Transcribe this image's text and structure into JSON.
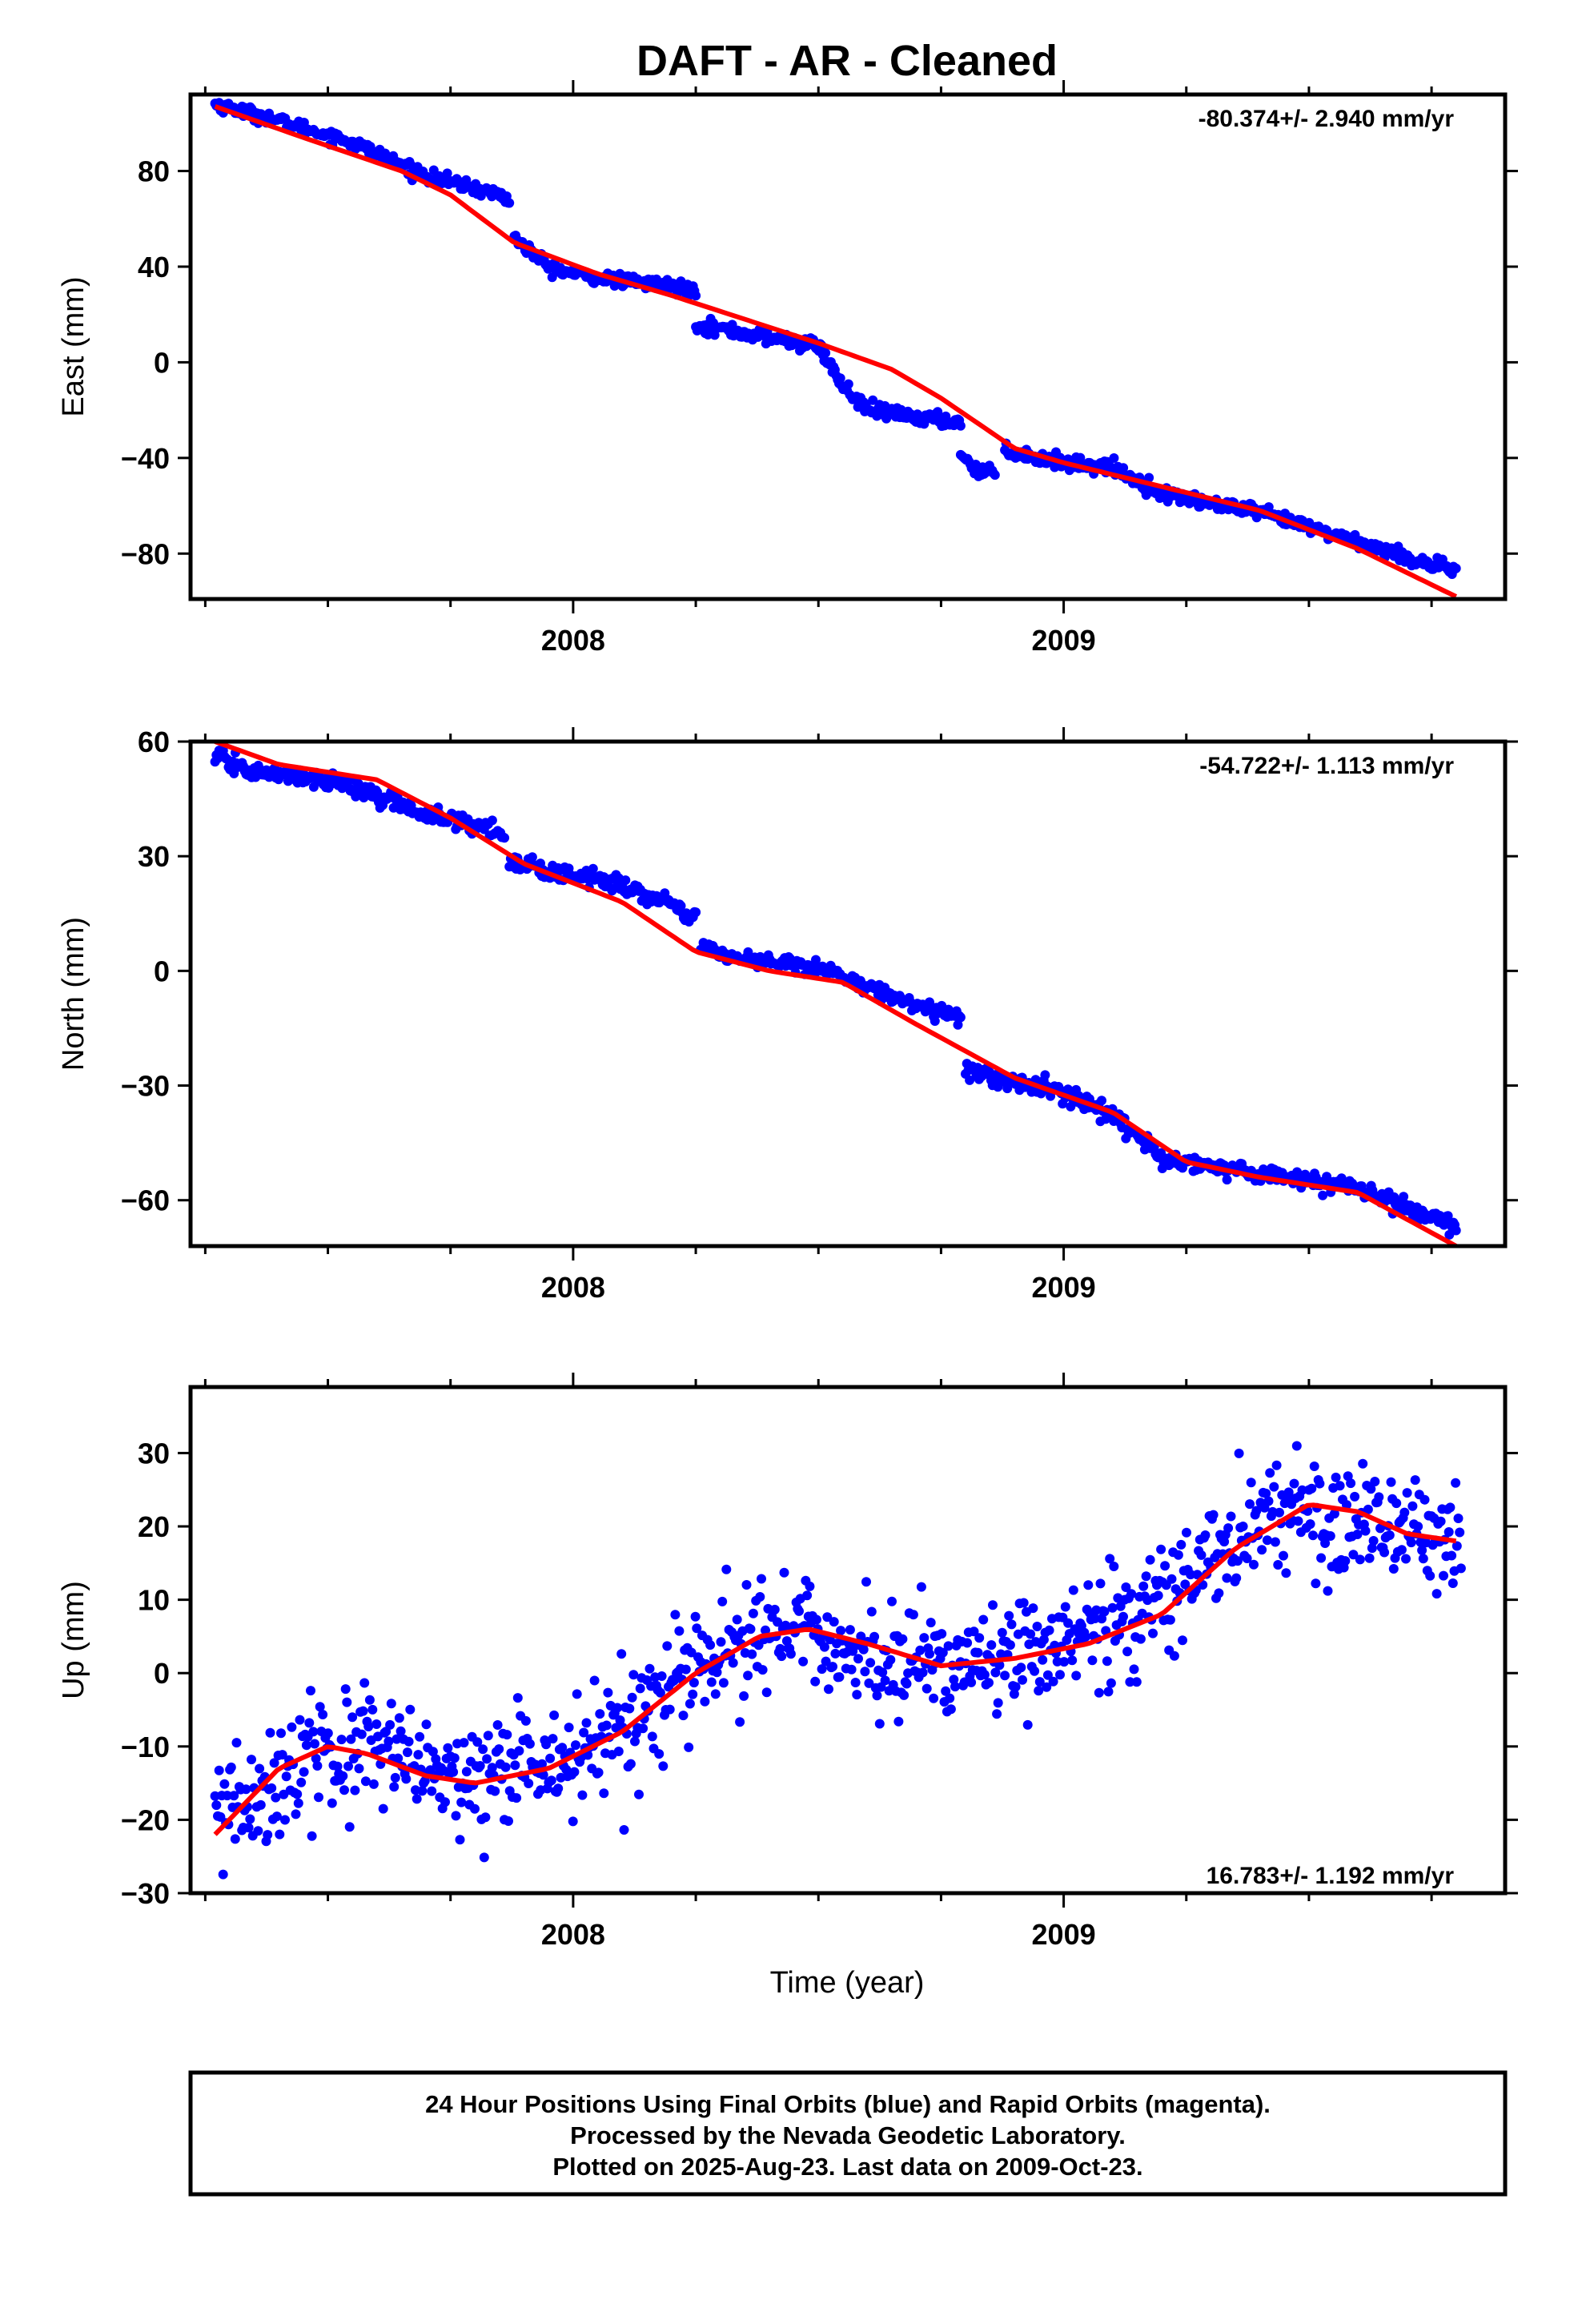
{
  "title": "DAFT  - AR - Cleaned",
  "xlabel": "Time (year)",
  "footer": {
    "line1": "24 Hour Positions Using Final Orbits (blue) and Rapid Orbits (magenta).",
    "line2": "Processed by the Nevada Geodetic Laboratory.",
    "line3": "Plotted on 2025-Aug-23. Last data on 2009-Oct-23."
  },
  "colors": {
    "points": "#0000ff",
    "fit": "#ff0000",
    "frame": "#000000"
  },
  "chart_data": [
    {
      "type": "scatter",
      "name_panel": "east",
      "ylabel": "East (mm)",
      "rate_text": "-80.374+/- 2.940 mm/yr",
      "rate_position": "top-right",
      "xlim": [
        2007.22,
        2009.9
      ],
      "ylim": [
        -99,
        112
      ],
      "yticks": [
        -80,
        -40,
        0,
        40,
        80
      ],
      "xticks": [
        2008,
        2009
      ],
      "x_minor_ticks": [
        2007.25,
        2007.5,
        2007.75,
        2008.25,
        2008.5,
        2008.75,
        2009.25,
        2009.5,
        2009.75
      ],
      "point_segments": [
        {
          "x": [
            2007.27,
            2007.4,
            2007.55,
            2007.7,
            2007.85,
            2007.87
          ],
          "y": [
            108,
            101,
            92,
            78,
            70,
            68
          ],
          "noise": 1.3
        },
        {
          "x": [
            2007.88,
            2007.95,
            2008.0,
            2008.1,
            2008.2,
            2008.25
          ],
          "y": [
            52,
            40,
            37,
            34,
            32,
            30
          ],
          "noise": 1.3
        },
        {
          "x": [
            2008.25,
            2008.35,
            2008.5,
            2008.55,
            2008.6,
            2008.7,
            2008.79
          ],
          "y": [
            16,
            12,
            7,
            -10,
            -20,
            -23,
            -25
          ],
          "noise": 1.5
        },
        {
          "x": [
            2008.79,
            2008.82,
            2008.86
          ],
          "y": [
            -38,
            -45,
            -46
          ],
          "noise": 1.2
        },
        {
          "x": [
            2008.88,
            2009.0,
            2009.1,
            2009.2,
            2009.4,
            2009.6,
            2009.8
          ],
          "y": [
            -37,
            -42,
            -44,
            -55,
            -63,
            -75,
            -88
          ],
          "noise": 1.4
        }
      ],
      "fit": {
        "x": [
          2007.27,
          2007.45,
          2007.65,
          2007.75,
          2007.88,
          2008.05,
          2008.2,
          2008.35,
          2008.5,
          2008.65,
          2008.75,
          2008.9,
          2009.0,
          2009.2,
          2009.4,
          2009.6,
          2009.8
        ],
        "y": [
          107,
          94,
          80,
          70,
          50,
          37,
          28,
          18,
          8,
          -3,
          -15,
          -36,
          -42,
          -52,
          -62,
          -78,
          -98
        ]
      }
    },
    {
      "type": "scatter",
      "name_panel": "north",
      "ylabel": "North (mm)",
      "rate_text": "-54.722+/- 1.113 mm/yr",
      "rate_position": "top-right",
      "xlim": [
        2007.22,
        2009.9
      ],
      "ylim": [
        -72,
        60
      ],
      "yticks": [
        -60,
        -30,
        0,
        30,
        60
      ],
      "xticks": [
        2008,
        2009
      ],
      "x_minor_ticks": [
        2007.25,
        2007.5,
        2007.75,
        2008.25,
        2008.5,
        2008.75,
        2009.25,
        2009.5,
        2009.75
      ],
      "point_segments": [
        {
          "x": [
            2007.27,
            2007.35,
            2007.5,
            2007.6,
            2007.7,
            2007.8,
            2007.86
          ],
          "y": [
            56,
            52,
            50,
            46,
            41,
            38,
            36
          ],
          "noise": 1.1
        },
        {
          "x": [
            2007.87,
            2007.95,
            2008.05,
            2008.15,
            2008.25
          ],
          "y": [
            29,
            26,
            24,
            20,
            14
          ],
          "noise": 1.1
        },
        {
          "x": [
            2008.26,
            2008.35,
            2008.5,
            2008.6,
            2008.7,
            2008.79
          ],
          "y": [
            6,
            3,
            1,
            -4,
            -9,
            -12
          ],
          "noise": 1.0
        },
        {
          "x": [
            2008.8,
            2008.9,
            2009.0,
            2009.1,
            2009.2,
            2009.4,
            2009.6,
            2009.8
          ],
          "y": [
            -26,
            -29,
            -32,
            -38,
            -49,
            -53,
            -57,
            -67
          ],
          "noise": 1.1
        }
      ],
      "fit": {
        "x": [
          2007.27,
          2007.4,
          2007.6,
          2007.75,
          2007.9,
          2008.1,
          2008.25,
          2008.4,
          2008.55,
          2008.7,
          2008.9,
          2009.1,
          2009.25,
          2009.4,
          2009.6,
          2009.8
        ],
        "y": [
          60,
          54,
          50,
          40,
          28,
          18,
          5,
          0,
          -3,
          -14,
          -28,
          -37,
          -50,
          -54,
          -58,
          -72
        ]
      }
    },
    {
      "type": "scatter",
      "name_panel": "up",
      "ylabel": "Up (mm)",
      "rate_text": "16.783+/- 1.192 mm/yr",
      "rate_position": "bottom-right",
      "xlim": [
        2007.22,
        2009.9
      ],
      "ylim": [
        -30,
        39
      ],
      "yticks": [
        -30,
        -20,
        -10,
        0,
        10,
        20,
        30
      ],
      "xticks": [
        2008,
        2009
      ],
      "x_minor_ticks": [
        2007.25,
        2007.5,
        2007.75,
        2008.25,
        2008.5,
        2008.75,
        2009.25,
        2009.5,
        2009.75
      ],
      "point_segments": [
        {
          "x": [
            2007.27,
            2007.35,
            2007.45,
            2007.55,
            2007.65,
            2007.75,
            2007.85,
            2007.95,
            2008.05,
            2008.15,
            2008.25,
            2008.35,
            2008.45,
            2008.55,
            2008.65,
            2008.75,
            2008.85,
            2008.95,
            2009.05,
            2009.15,
            2009.25,
            2009.35,
            2009.45,
            2009.55,
            2009.65,
            2009.75,
            2009.81
          ],
          "y": [
            -20,
            -17,
            -12,
            -10,
            -12,
            -15,
            -14,
            -12,
            -10,
            -6,
            0,
            4,
            6,
            4,
            1,
            1,
            2,
            3,
            5,
            8,
            13,
            19,
            23,
            22,
            20,
            18,
            18
          ],
          "noise": 4.0
        }
      ],
      "fit": {
        "x": [
          2007.27,
          2007.4,
          2007.5,
          2007.58,
          2007.7,
          2007.8,
          2007.95,
          2008.1,
          2008.25,
          2008.38,
          2008.48,
          2008.6,
          2008.75,
          2008.9,
          2009.05,
          2009.2,
          2009.35,
          2009.5,
          2009.6,
          2009.7,
          2009.8
        ],
        "y": [
          -22,
          -13,
          -10,
          -11,
          -14,
          -15,
          -13,
          -8,
          0,
          5,
          6,
          4,
          1,
          2,
          4,
          8,
          17,
          23,
          22,
          19,
          18
        ]
      }
    }
  ]
}
